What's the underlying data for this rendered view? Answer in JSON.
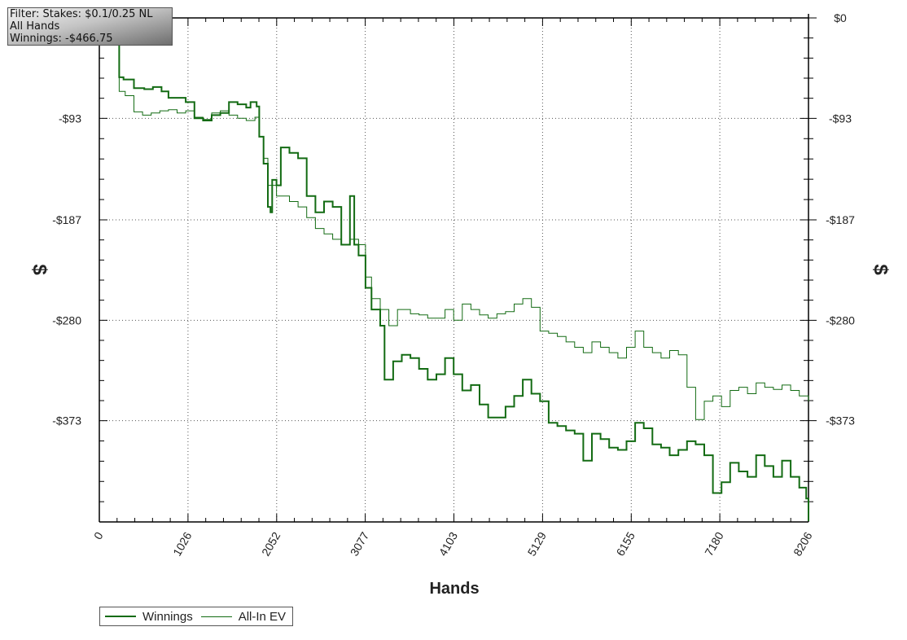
{
  "info_box": {
    "filter": "Filter: Stakes: $0.1/0.25 NL",
    "hands": "All Hands",
    "winnings": "Winnings: -$466.75"
  },
  "legend": {
    "items": [
      {
        "label": "Winnings",
        "color": "#136b13"
      },
      {
        "label": "All-In EV",
        "color": "#136b13"
      }
    ]
  },
  "chart_data": {
    "type": "line",
    "title": "",
    "xlabel": "Hands",
    "ylabel": "$",
    "xlim": [
      0,
      8206
    ],
    "ylim": [
      -466.75,
      0
    ],
    "x_ticks": [
      0,
      1026,
      2052,
      3077,
      4103,
      5129,
      6155,
      7180,
      8206
    ],
    "x_tick_labels": [
      "0",
      "1026",
      "2052",
      "3077",
      "4103",
      "5129",
      "6155",
      "7180",
      "8206"
    ],
    "y_ticks": [
      0,
      -93,
      -187,
      -280,
      -373
    ],
    "y_tick_labels": [
      "$0",
      "-$93",
      "-$187",
      "-$280",
      "-$373"
    ],
    "grid": true,
    "legend_position": "bottom-left",
    "series": [
      {
        "name": "Winnings",
        "color": "#136b13",
        "line_width": 2,
        "points": [
          [
            220,
            -22
          ],
          [
            230,
            -55
          ],
          [
            280,
            -57
          ],
          [
            400,
            -65
          ],
          [
            520,
            -66
          ],
          [
            620,
            -64
          ],
          [
            720,
            -68
          ],
          [
            800,
            -74
          ],
          [
            1000,
            -78
          ],
          [
            1100,
            -93
          ],
          [
            1200,
            -95
          ],
          [
            1300,
            -90
          ],
          [
            1400,
            -88
          ],
          [
            1500,
            -78
          ],
          [
            1600,
            -80
          ],
          [
            1700,
            -83
          ],
          [
            1750,
            -78
          ],
          [
            1820,
            -82
          ],
          [
            1850,
            -110
          ],
          [
            1900,
            -135
          ],
          [
            1950,
            -175
          ],
          [
            1980,
            -180
          ],
          [
            2000,
            -150
          ],
          [
            2050,
            -155
          ],
          [
            2100,
            -120
          ],
          [
            2200,
            -125
          ],
          [
            2300,
            -130
          ],
          [
            2400,
            -165
          ],
          [
            2500,
            -180
          ],
          [
            2600,
            -170
          ],
          [
            2700,
            -175
          ],
          [
            2800,
            -210
          ],
          [
            2900,
            -165
          ],
          [
            2950,
            -210
          ],
          [
            3000,
            -220
          ],
          [
            3080,
            -250
          ],
          [
            3150,
            -270
          ],
          [
            3250,
            -285
          ],
          [
            3300,
            -335
          ],
          [
            3400,
            -318
          ],
          [
            3500,
            -312
          ],
          [
            3600,
            -315
          ],
          [
            3700,
            -325
          ],
          [
            3800,
            -335
          ],
          [
            3900,
            -330
          ],
          [
            4000,
            -315
          ],
          [
            4100,
            -330
          ],
          [
            4200,
            -345
          ],
          [
            4300,
            -340
          ],
          [
            4400,
            -358
          ],
          [
            4500,
            -370
          ],
          [
            4600,
            -370
          ],
          [
            4700,
            -360
          ],
          [
            4800,
            -350
          ],
          [
            4900,
            -335
          ],
          [
            5000,
            -348
          ],
          [
            5100,
            -355
          ],
          [
            5200,
            -375
          ],
          [
            5300,
            -378
          ],
          [
            5400,
            -382
          ],
          [
            5500,
            -385
          ],
          [
            5600,
            -410
          ],
          [
            5700,
            -385
          ],
          [
            5800,
            -390
          ],
          [
            5900,
            -398
          ],
          [
            6000,
            -400
          ],
          [
            6100,
            -392
          ],
          [
            6200,
            -375
          ],
          [
            6300,
            -380
          ],
          [
            6400,
            -395
          ],
          [
            6500,
            -398
          ],
          [
            6600,
            -405
          ],
          [
            6700,
            -400
          ],
          [
            6800,
            -392
          ],
          [
            6900,
            -395
          ],
          [
            7000,
            -405
          ],
          [
            7100,
            -440
          ],
          [
            7200,
            -430
          ],
          [
            7300,
            -412
          ],
          [
            7400,
            -420
          ],
          [
            7500,
            -425
          ],
          [
            7600,
            -405
          ],
          [
            7700,
            -415
          ],
          [
            7800,
            -425
          ],
          [
            7900,
            -410
          ],
          [
            8000,
            -425
          ],
          [
            8100,
            -435
          ],
          [
            8180,
            -445
          ],
          [
            8206,
            -466
          ]
        ]
      },
      {
        "name": "All-In EV",
        "color": "#136b13",
        "line_width": 1,
        "points": [
          [
            220,
            -22
          ],
          [
            230,
            -68
          ],
          [
            300,
            -72
          ],
          [
            400,
            -87
          ],
          [
            500,
            -90
          ],
          [
            600,
            -88
          ],
          [
            700,
            -86
          ],
          [
            800,
            -85
          ],
          [
            900,
            -88
          ],
          [
            1000,
            -86
          ],
          [
            1100,
            -92
          ],
          [
            1200,
            -94
          ],
          [
            1300,
            -88
          ],
          [
            1400,
            -86
          ],
          [
            1500,
            -90
          ],
          [
            1600,
            -93
          ],
          [
            1700,
            -95
          ],
          [
            1800,
            -92
          ],
          [
            1850,
            -110
          ],
          [
            1900,
            -130
          ],
          [
            1950,
            -155
          ],
          [
            2000,
            -155
          ],
          [
            2050,
            -165
          ],
          [
            2100,
            -165
          ],
          [
            2200,
            -170
          ],
          [
            2300,
            -175
          ],
          [
            2400,
            -185
          ],
          [
            2500,
            -195
          ],
          [
            2600,
            -200
          ],
          [
            2700,
            -205
          ],
          [
            2800,
            -210
          ],
          [
            2900,
            -205
          ],
          [
            3000,
            -210
          ],
          [
            3080,
            -240
          ],
          [
            3150,
            -260
          ],
          [
            3250,
            -270
          ],
          [
            3350,
            -285
          ],
          [
            3450,
            -270
          ],
          [
            3500,
            -270
          ],
          [
            3600,
            -274
          ],
          [
            3700,
            -275
          ],
          [
            3800,
            -278
          ],
          [
            3900,
            -278
          ],
          [
            4000,
            -270
          ],
          [
            4100,
            -280
          ],
          [
            4200,
            -265
          ],
          [
            4300,
            -270
          ],
          [
            4400,
            -275
          ],
          [
            4500,
            -278
          ],
          [
            4600,
            -274
          ],
          [
            4700,
            -272
          ],
          [
            4800,
            -265
          ],
          [
            4900,
            -260
          ],
          [
            5000,
            -268
          ],
          [
            5100,
            -290
          ],
          [
            5200,
            -292
          ],
          [
            5300,
            -295
          ],
          [
            5400,
            -300
          ],
          [
            5500,
            -305
          ],
          [
            5600,
            -310
          ],
          [
            5700,
            -300
          ],
          [
            5800,
            -305
          ],
          [
            5900,
            -310
          ],
          [
            6000,
            -315
          ],
          [
            6100,
            -305
          ],
          [
            6200,
            -290
          ],
          [
            6300,
            -305
          ],
          [
            6400,
            -310
          ],
          [
            6500,
            -315
          ],
          [
            6600,
            -308
          ],
          [
            6700,
            -312
          ],
          [
            6800,
            -342
          ],
          [
            6900,
            -372
          ],
          [
            7000,
            -355
          ],
          [
            7100,
            -350
          ],
          [
            7200,
            -360
          ],
          [
            7300,
            -345
          ],
          [
            7400,
            -342
          ],
          [
            7500,
            -348
          ],
          [
            7600,
            -338
          ],
          [
            7700,
            -342
          ],
          [
            7800,
            -344
          ],
          [
            7900,
            -340
          ],
          [
            8000,
            -345
          ],
          [
            8100,
            -350
          ],
          [
            8206,
            -355
          ]
        ]
      }
    ]
  }
}
